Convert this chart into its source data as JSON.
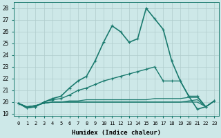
{
  "xlabel": "Humidex (Indice chaleur)",
  "xlim": [
    -0.5,
    23.5
  ],
  "ylim": [
    18.8,
    28.5
  ],
  "yticks": [
    19,
    20,
    21,
    22,
    23,
    24,
    25,
    26,
    27,
    28
  ],
  "xticks": [
    0,
    1,
    2,
    3,
    4,
    5,
    6,
    7,
    8,
    9,
    10,
    11,
    12,
    13,
    14,
    15,
    16,
    17,
    18,
    19,
    20,
    21,
    22,
    23
  ],
  "bg_color": "#cde8e8",
  "grid_color": "#b0cccc",
  "line_color": "#1a7a6e",
  "lines": [
    {
      "y": [
        19.9,
        19.5,
        19.6,
        20.0,
        20.3,
        20.5,
        21.2,
        21.8,
        22.2,
        23.5,
        25.1,
        26.5,
        26.0,
        25.1,
        25.4,
        28.0,
        27.1,
        26.2,
        23.5,
        21.8,
        20.5,
        19.4,
        19.6,
        20.1
      ],
      "marker": true,
      "lw": 1.2
    },
    {
      "y": [
        19.9,
        19.5,
        19.6,
        20.0,
        20.2,
        20.3,
        20.6,
        21.0,
        21.2,
        21.5,
        21.8,
        22.0,
        22.2,
        22.4,
        22.6,
        22.8,
        23.0,
        21.8,
        21.8,
        21.8,
        20.5,
        20.5,
        19.6,
        20.1
      ],
      "marker": true,
      "lw": 1.0
    },
    {
      "y": [
        19.9,
        19.6,
        19.7,
        19.9,
        20.0,
        20.0,
        20.1,
        20.1,
        20.2,
        20.2,
        20.2,
        20.2,
        20.2,
        20.2,
        20.2,
        20.2,
        20.3,
        20.3,
        20.3,
        20.3,
        20.4,
        20.4,
        19.6,
        20.1
      ],
      "marker": false,
      "lw": 0.9
    },
    {
      "y": [
        19.9,
        19.6,
        19.7,
        19.9,
        20.0,
        20.0,
        20.0,
        20.0,
        20.0,
        20.0,
        20.0,
        20.0,
        20.0,
        20.0,
        20.0,
        20.0,
        20.0,
        20.0,
        20.0,
        20.0,
        20.1,
        20.2,
        19.6,
        20.1
      ],
      "marker": false,
      "lw": 0.9
    },
    {
      "y": [
        19.9,
        19.6,
        19.7,
        19.9,
        20.0,
        20.0,
        20.0,
        20.0,
        20.0,
        20.0,
        20.0,
        20.0,
        20.0,
        20.0,
        20.0,
        20.0,
        20.0,
        20.0,
        20.0,
        20.0,
        20.0,
        20.0,
        19.6,
        20.1
      ],
      "marker": false,
      "lw": 0.9
    }
  ]
}
